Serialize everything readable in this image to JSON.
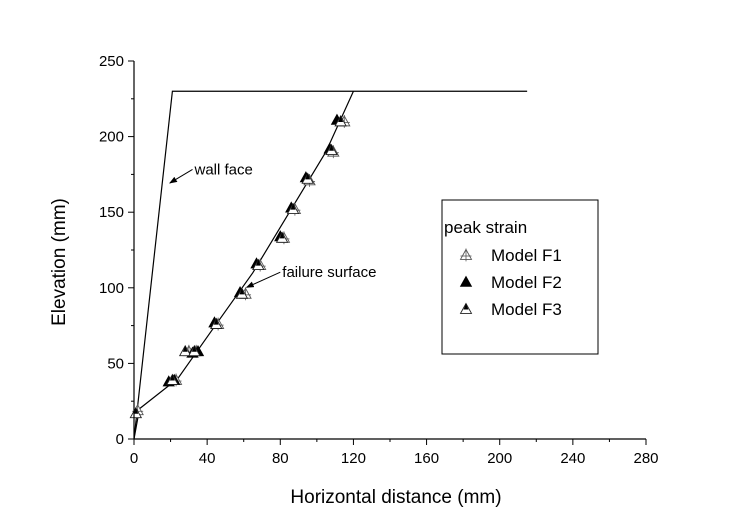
{
  "chart_data": {
    "type": "scatter",
    "xlabel": "Horizontal distance (mm)",
    "ylabel": "Elevation (mm)",
    "xlim": [
      0,
      280
    ],
    "ylim": [
      0,
      250
    ],
    "xticks": [
      0,
      40,
      80,
      120,
      160,
      200,
      240,
      280
    ],
    "yticks": [
      0,
      50,
      100,
      150,
      200,
      250
    ],
    "xtick_labels": [
      "0",
      "40",
      "80",
      "120",
      "160",
      "200",
      "240",
      "280"
    ],
    "ytick_labels": [
      "0",
      "50",
      "100",
      "150",
      "200",
      "250"
    ],
    "grid": false,
    "legend": {
      "title": "peak strain",
      "position": "right"
    },
    "series": [
      {
        "name": "Model F1",
        "marker": "triangle-open-cross",
        "x": [
          2,
          23,
          30,
          34,
          46,
          61,
          69,
          82,
          88,
          96,
          109,
          115
        ],
        "y": [
          19,
          39,
          58,
          58,
          76,
          96,
          115,
          133,
          152,
          171,
          190,
          210
        ]
      },
      {
        "name": "Model F2",
        "marker": "triangle-filled",
        "x": [
          19,
          22,
          32,
          35,
          44,
          58,
          67,
          80,
          86,
          94,
          107,
          111
        ],
        "y": [
          38,
          39,
          57,
          58,
          77,
          97,
          116,
          134,
          153,
          173,
          192,
          211
        ]
      },
      {
        "name": "Model F3",
        "marker": "triangle-half",
        "x": [
          1,
          21,
          28,
          33,
          45,
          59,
          68,
          81,
          87,
          95,
          108,
          113
        ],
        "y": [
          17,
          39,
          58,
          58,
          76,
          96,
          115,
          133,
          152,
          172,
          191,
          210
        ]
      }
    ],
    "lines": [
      {
        "label": "wall face",
        "x": [
          0,
          21,
          215
        ],
        "y": [
          0,
          230,
          230
        ]
      },
      {
        "label": "failure surface",
        "x": [
          0,
          3,
          24,
          45,
          65,
          85,
          105,
          120
        ],
        "y": [
          0,
          20,
          40,
          76,
          110,
          150,
          190,
          230
        ]
      }
    ],
    "annotations": [
      {
        "text": "wall face",
        "x": 32,
        "y": 175,
        "arrow_to": [
          18,
          170
        ]
      },
      {
        "text": "failure surface",
        "x": 80,
        "y": 107,
        "arrow_to": [
          60,
          101
        ]
      }
    ]
  }
}
